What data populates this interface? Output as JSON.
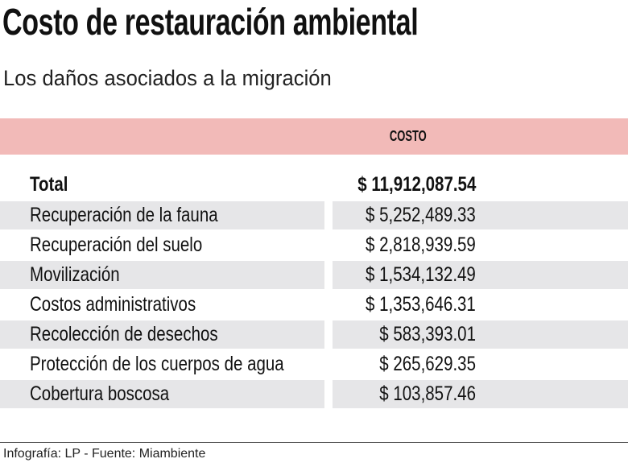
{
  "title": "Costo de restauración ambiental",
  "subtitle": "Los daños asociados a la migración",
  "colors": {
    "header_band": "#f2bab8",
    "row_shade": "#e6e6e8"
  },
  "chart_data": {
    "type": "table",
    "columns": [
      "",
      "COSTO"
    ],
    "total": {
      "label": "Total",
      "value": "$ 11,912,087.54"
    },
    "rows": [
      {
        "label": "Recuperación de la fauna",
        "value": "$ 5,252,489.33"
      },
      {
        "label": "Recuperación del suelo",
        "value": "$ 2,818,939.59"
      },
      {
        "label": "Movilización",
        "value": "$ 1,534,132.49"
      },
      {
        "label": "Costos administrativos",
        "value": "$ 1,353,646.31"
      },
      {
        "label": "Recolección de desechos",
        "value": "$ 583,393.01"
      },
      {
        "label": "Protección de los cuerpos de agua",
        "value": "$ 265,629.35"
      },
      {
        "label": "Cobertura boscosa",
        "value": "$ 103,857.46"
      }
    ]
  },
  "footer": "Infografía: LP - Fuente: Miambiente"
}
